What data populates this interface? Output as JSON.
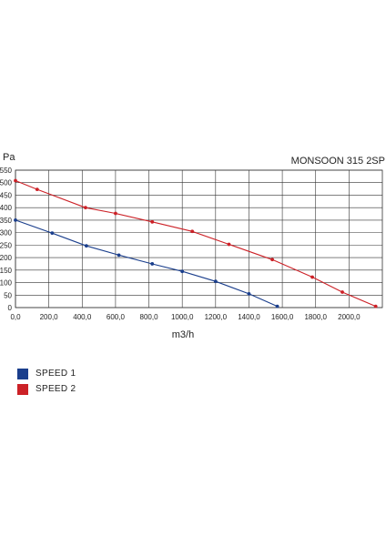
{
  "chart_data": {
    "type": "line",
    "title": "MONSOON 315 2SP",
    "ylabel": "Pa",
    "xlabel": "m3/h",
    "xlim": [
      0,
      2200
    ],
    "ylim": [
      0,
      550
    ],
    "x_ticks": [
      "0,0",
      "200,0",
      "400,0",
      "600,0",
      "800,0",
      "1000,0",
      "1200,0",
      "1400,0",
      "1600,0",
      "1800,0",
      "2000,0"
    ],
    "x_tick_values": [
      0,
      200,
      400,
      600,
      800,
      1000,
      1200,
      1400,
      1600,
      1800,
      2000
    ],
    "y_ticks": [
      "0",
      "50",
      "100",
      "150",
      "200",
      "250",
      "300",
      "350",
      "400",
      "450",
      "500",
      "550"
    ],
    "y_tick_values": [
      0,
      50,
      100,
      150,
      200,
      250,
      300,
      350,
      400,
      450,
      500,
      550
    ],
    "grid": true,
    "legend_position": "bottom-left",
    "series": [
      {
        "name": "SPEED 1",
        "color": "#1a3e8c",
        "points": [
          [
            0,
            350
          ],
          [
            220,
            298
          ],
          [
            425,
            247
          ],
          [
            620,
            210
          ],
          [
            820,
            175
          ],
          [
            1000,
            145
          ],
          [
            1200,
            105
          ],
          [
            1400,
            55
          ],
          [
            1570,
            5
          ]
        ]
      },
      {
        "name": "SPEED 2",
        "color": "#cc2127",
        "points": [
          [
            0,
            508
          ],
          [
            130,
            473
          ],
          [
            420,
            400
          ],
          [
            600,
            377
          ],
          [
            820,
            343
          ],
          [
            1060,
            305
          ],
          [
            1280,
            253
          ],
          [
            1540,
            192
          ],
          [
            1780,
            122
          ],
          [
            1960,
            62
          ],
          [
            2160,
            5
          ]
        ]
      }
    ]
  }
}
